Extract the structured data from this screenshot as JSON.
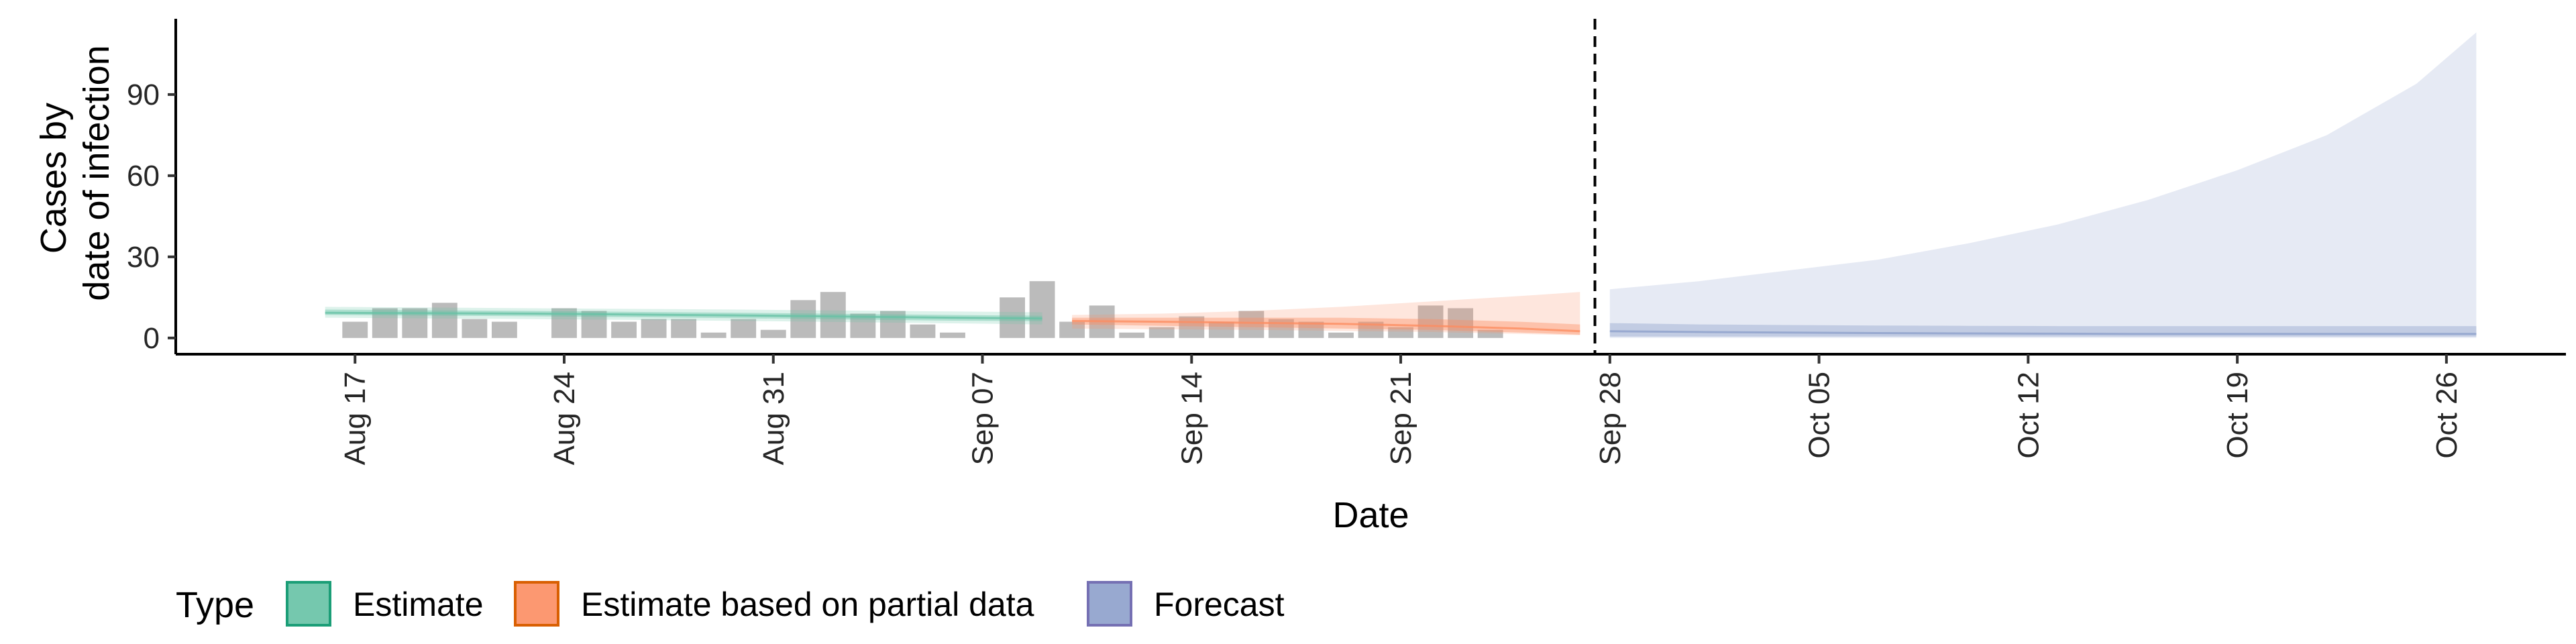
{
  "chart_data": {
    "type": "area",
    "xlabel": "Date",
    "ylabel_lines": [
      "Cases by",
      "date of infection"
    ],
    "x_range": [
      "2020-08-11",
      "2020-10-30"
    ],
    "ylim": [
      -6,
      118
    ],
    "y_ticks": [
      0,
      30,
      60,
      90
    ],
    "x_ticks": [
      {
        "date": "2020-08-17",
        "label": "Aug 17"
      },
      {
        "date": "2020-08-24",
        "label": "Aug 24"
      },
      {
        "date": "2020-08-31",
        "label": "Aug 31"
      },
      {
        "date": "2020-09-07",
        "label": "Sep 07"
      },
      {
        "date": "2020-09-14",
        "label": "Sep 14"
      },
      {
        "date": "2020-09-21",
        "label": "Sep 21"
      },
      {
        "date": "2020-09-28",
        "label": "Sep 28"
      },
      {
        "date": "2020-10-05",
        "label": "Oct 05"
      },
      {
        "date": "2020-10-12",
        "label": "Oct 12"
      },
      {
        "date": "2020-10-19",
        "label": "Oct 19"
      },
      {
        "date": "2020-10-26",
        "label": "Oct 26"
      }
    ],
    "forecast_start": "2020-09-27",
    "bars": {
      "color": "#9e9e9e",
      "start_date": "2020-08-17",
      "values": [
        6,
        11,
        11,
        13,
        7,
        6,
        0,
        11,
        10,
        6,
        7,
        7,
        2,
        7,
        3,
        14,
        17,
        9,
        10,
        5,
        2,
        0,
        15,
        21,
        6,
        12,
        2,
        4,
        8,
        6,
        10,
        7,
        6,
        2,
        6,
        4,
        12,
        11,
        3
      ]
    },
    "series": [
      {
        "name": "Estimate",
        "color": "#1b9e77",
        "fill": "#66c2a5",
        "dates": [
          "2020-08-16",
          "2020-08-23",
          "2020-08-30",
          "2020-09-06",
          "2020-09-09"
        ],
        "outer_lower": [
          7.5,
          7.0,
          6.3,
          5.4,
          5.0
        ],
        "outer_upper": [
          11.5,
          11.0,
          10.5,
          9.8,
          9.5
        ],
        "inner_lower": [
          8.5,
          8.0,
          7.3,
          6.4,
          6.2
        ],
        "inner_upper": [
          10.5,
          10.0,
          9.3,
          8.5,
          8.2
        ],
        "median": [
          9.3,
          9.0,
          8.3,
          7.5,
          7.2
        ]
      },
      {
        "name": "Estimate based on partial data",
        "color": "#d95f02",
        "fill": "#fc8d62",
        "dates": [
          "2020-09-10",
          "2020-09-13",
          "2020-09-16",
          "2020-09-19",
          "2020-09-22",
          "2020-09-25",
          "2020-09-27"
        ],
        "outer_lower": [
          3.5,
          3.2,
          3.0,
          2.6,
          2.2,
          1.5,
          1.0
        ],
        "outer_upper": [
          8.5,
          9.0,
          10.0,
          11.5,
          13.5,
          15.5,
          17.0
        ],
        "inner_lower": [
          5.0,
          4.5,
          4.0,
          3.5,
          3.0,
          2.0,
          1.2
        ],
        "inner_upper": [
          7.5,
          7.5,
          7.5,
          7.5,
          7.0,
          6.0,
          5.0
        ],
        "median": [
          6.3,
          6.0,
          5.6,
          5.2,
          4.5,
          3.5,
          2.5
        ]
      },
      {
        "name": "Forecast",
        "color": "#7570b3",
        "fill": "#8da0cb",
        "dates": [
          "2020-09-28",
          "2020-10-01",
          "2020-10-04",
          "2020-10-07",
          "2020-10-10",
          "2020-10-13",
          "2020-10-16",
          "2020-10-19",
          "2020-10-22",
          "2020-10-25",
          "2020-10-27"
        ],
        "outer_lower": [
          0,
          0,
          0,
          0,
          0,
          0,
          0,
          0,
          0,
          0,
          0
        ],
        "outer_upper": [
          18,
          21,
          25,
          29,
          35,
          42,
          51,
          62,
          75,
          94,
          113
        ],
        "inner_lower": [
          0.5,
          0.5,
          0.5,
          0.5,
          0.5,
          0.5,
          0.5,
          0.5,
          0.5,
          0.5,
          0.5
        ],
        "inner_upper": [
          5.5,
          5.0,
          4.8,
          4.6,
          4.5,
          4.4,
          4.4,
          4.4,
          4.4,
          4.4,
          4.4
        ],
        "median": [
          2.5,
          2.2,
          2.0,
          1.8,
          1.7,
          1.6,
          1.5,
          1.5,
          1.5,
          1.5,
          1.5
        ]
      }
    ],
    "legend": {
      "title": "Type",
      "position": "bottom",
      "items": [
        "Estimate",
        "Estimate based on partial data",
        "Forecast"
      ]
    }
  }
}
